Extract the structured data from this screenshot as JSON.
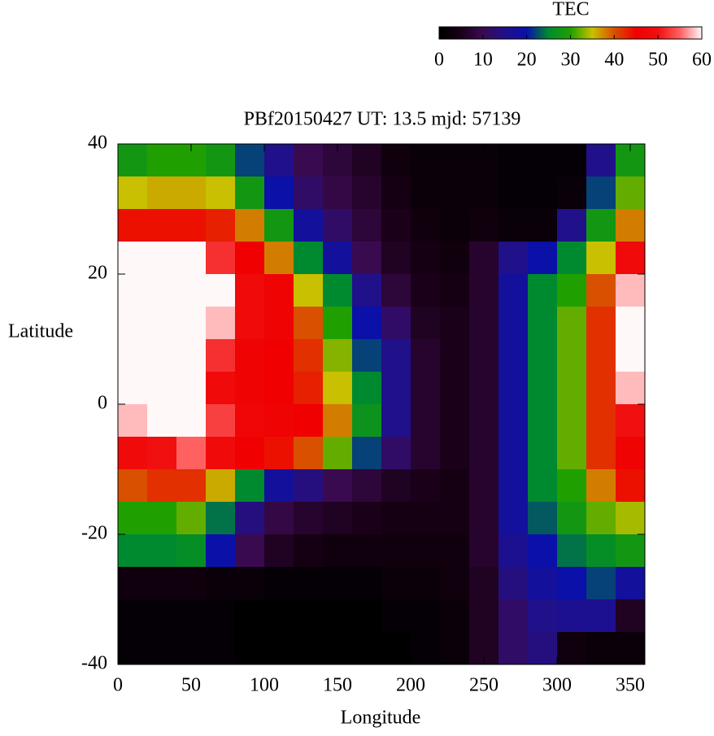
{
  "chart_data": {
    "type": "heatmap",
    "title": "PBf20150427  UT: 13.5  mjd: 57139",
    "x_label": "Longitude",
    "y_label": "Latitude",
    "colorbar_label": "TEC",
    "xlim": [
      0,
      360
    ],
    "ylim": [
      -40,
      40
    ],
    "xticks": [
      0,
      50,
      100,
      150,
      200,
      250,
      300,
      350
    ],
    "yticks": [
      -40,
      -20,
      0,
      20,
      40
    ],
    "zlim": [
      0,
      60
    ],
    "zticks": [
      0,
      10,
      20,
      30,
      40,
      50,
      60
    ],
    "colormap": [
      "#000000",
      "#1a0018",
      "#3a0a50",
      "#20108a",
      "#0a10a8",
      "#008a30",
      "#20a000",
      "#c8c000",
      "#d85000",
      "#f00000",
      "#f01010",
      "#ff6060",
      "#fff8f8"
    ],
    "x": [
      10,
      30,
      50,
      70,
      90,
      110,
      130,
      150,
      170,
      190,
      210,
      230,
      250,
      270,
      290,
      310,
      330,
      350
    ],
    "y": [
      37.5,
      32.5,
      27.5,
      22.5,
      17.5,
      12.5,
      7.5,
      2.5,
      -2.5,
      -7.5,
      -12.5,
      -17.5,
      -22.5,
      -27.5,
      -32.5,
      -37.5
    ],
    "values": [
      [
        28,
        30,
        30,
        28,
        22,
        15,
        10,
        8,
        6,
        3,
        2,
        2,
        2,
        1,
        1,
        1,
        15,
        28
      ],
      [
        35,
        36,
        36,
        35,
        28,
        20,
        12,
        9,
        7,
        4,
        2,
        2,
        2,
        1,
        1,
        2,
        22,
        32
      ],
      [
        44,
        44,
        44,
        43,
        38,
        28,
        18,
        12,
        8,
        5,
        3,
        2,
        3,
        2,
        2,
        15,
        28,
        38
      ],
      [
        60,
        60,
        60,
        52,
        45,
        38,
        25,
        18,
        10,
        6,
        4,
        3,
        7,
        15,
        20,
        25,
        35,
        48
      ],
      [
        60,
        60,
        60,
        60,
        48,
        46,
        35,
        25,
        15,
        8,
        5,
        4,
        7,
        18,
        25,
        30,
        40,
        58
      ],
      [
        60,
        60,
        60,
        58,
        48,
        46,
        40,
        30,
        20,
        12,
        6,
        5,
        7,
        18,
        25,
        32,
        42,
        60
      ],
      [
        60,
        60,
        60,
        52,
        46,
        45,
        42,
        33,
        22,
        15,
        7,
        5,
        7,
        18,
        25,
        32,
        42,
        60
      ],
      [
        60,
        60,
        60,
        48,
        46,
        45,
        43,
        35,
        25,
        15,
        7,
        5,
        7,
        18,
        25,
        32,
        42,
        58
      ],
      [
        58,
        60,
        60,
        53,
        47,
        46,
        45,
        38,
        27,
        15,
        7,
        5,
        7,
        18,
        25,
        32,
        42,
        50
      ],
      [
        48,
        50,
        55,
        48,
        45,
        44,
        40,
        32,
        22,
        12,
        7,
        5,
        7,
        18,
        25,
        32,
        42,
        46
      ],
      [
        40,
        42,
        42,
        36,
        25,
        18,
        14,
        10,
        8,
        6,
        5,
        4,
        7,
        18,
        25,
        30,
        38,
        44
      ],
      [
        30,
        30,
        32,
        24,
        14,
        9,
        7,
        6,
        5,
        4,
        4,
        4,
        7,
        18,
        23,
        28,
        32,
        34
      ],
      [
        25,
        25,
        26,
        20,
        10,
        6,
        4,
        3,
        3,
        3,
        3,
        3,
        7,
        16,
        20,
        24,
        26,
        28
      ],
      [
        3,
        3,
        3,
        2,
        2,
        1,
        1,
        1,
        1,
        2,
        2,
        3,
        6,
        14,
        18,
        20,
        22,
        18
      ],
      [
        1,
        1,
        1,
        1,
        0,
        0,
        0,
        0,
        0,
        1,
        1,
        2,
        6,
        12,
        15,
        16,
        16,
        6
      ],
      [
        1,
        1,
        1,
        1,
        0,
        0,
        0,
        0,
        0,
        0,
        1,
        2,
        6,
        12,
        14,
        3,
        2,
        2
      ]
    ]
  }
}
